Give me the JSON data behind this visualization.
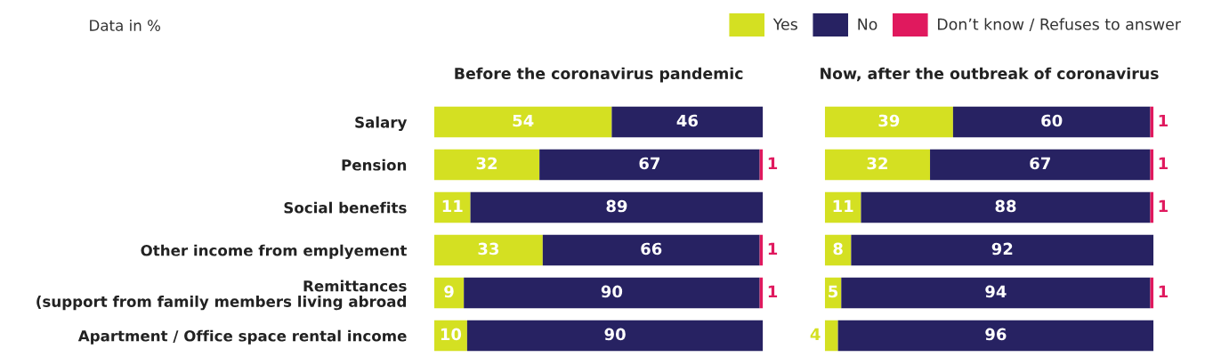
{
  "chart_data": [
    {
      "type": "bar",
      "orientation": "horizontal",
      "stacked": true,
      "data_labels": true,
      "legend": "top right",
      "grid": false,
      "annotations": [
        "Data in %"
      ],
      "title": "Before the coronavirus pandemic",
      "categories": [
        "Salary",
        "Pension",
        "Social benefits",
        "Other income from emplyement",
        "Remittances\n(support from family members living abroad",
        "Apartment / Office space rental income"
      ],
      "series": [
        {
          "name": "Yes",
          "color": "#d4e022",
          "values": [
            54,
            32,
            11,
            33,
            9,
            10
          ]
        },
        {
          "name": "No",
          "color": "#272262",
          "values": [
            46,
            67,
            89,
            66,
            90,
            90
          ]
        },
        {
          "name": "Don’t know / Refuses to answer",
          "color": "#e0195e",
          "values": [
            null,
            1,
            null,
            1,
            1,
            null
          ]
        }
      ]
    },
    {
      "type": "bar",
      "orientation": "horizontal",
      "stacked": true,
      "data_labels": true,
      "grid": false,
      "title": "Now, after the outbreak of coronavirus",
      "categories": [
        null,
        null,
        null,
        null,
        null,
        null
      ],
      "series": [
        {
          "color": "#d4e022",
          "values": [
            39,
            32,
            11,
            8,
            5,
            4
          ]
        },
        {
          "color": "#272262",
          "values": [
            60,
            67,
            88,
            92,
            94,
            96
          ]
        },
        {
          "color": "#e0195e",
          "values": [
            1,
            1,
            1,
            null,
            1,
            null
          ]
        }
      ]
    }
  ]
}
